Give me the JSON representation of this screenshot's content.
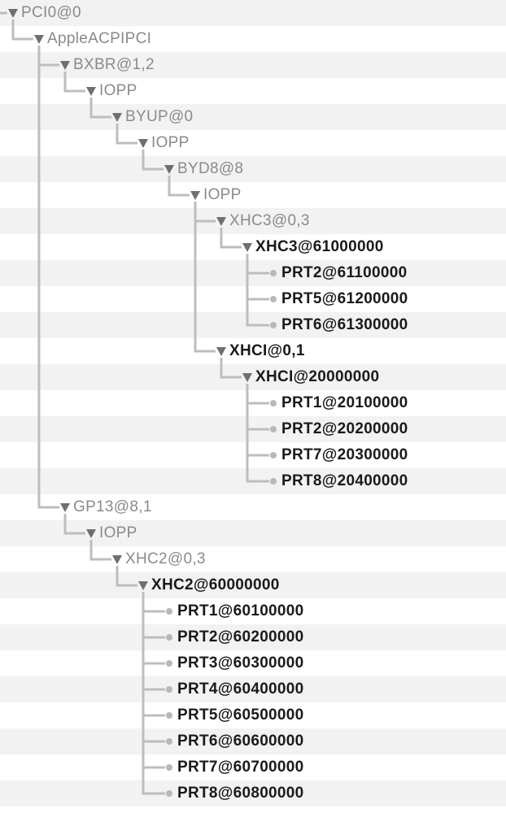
{
  "tree": {
    "nodes": [
      {
        "label": "PCI0@0",
        "depth": 0,
        "expanded": true,
        "bold": false
      },
      {
        "label": "AppleACPIPCI",
        "depth": 1,
        "expanded": true,
        "bold": false
      },
      {
        "label": "BXBR@1,2",
        "depth": 2,
        "expanded": true,
        "bold": false
      },
      {
        "label": "IOPP",
        "depth": 3,
        "expanded": true,
        "bold": false
      },
      {
        "label": "BYUP@0",
        "depth": 4,
        "expanded": true,
        "bold": false
      },
      {
        "label": "IOPP",
        "depth": 5,
        "expanded": true,
        "bold": false
      },
      {
        "label": "BYD8@8",
        "depth": 6,
        "expanded": true,
        "bold": false
      },
      {
        "label": "IOPP",
        "depth": 7,
        "expanded": true,
        "bold": false
      },
      {
        "label": "XHC3@0,3",
        "depth": 8,
        "expanded": true,
        "bold": false
      },
      {
        "label": "XHC3@61000000",
        "depth": 9,
        "expanded": true,
        "bold": true
      },
      {
        "label": "PRT2@61100000",
        "depth": 10,
        "expanded": false,
        "bold": true
      },
      {
        "label": "PRT5@61200000",
        "depth": 10,
        "expanded": false,
        "bold": true
      },
      {
        "label": "PRT6@61300000",
        "depth": 10,
        "expanded": false,
        "bold": true
      },
      {
        "label": "XHCI@0,1",
        "depth": 8,
        "expanded": true,
        "bold": true
      },
      {
        "label": "XHCI@20000000",
        "depth": 9,
        "expanded": true,
        "bold": true
      },
      {
        "label": "PRT1@20100000",
        "depth": 10,
        "expanded": false,
        "bold": true
      },
      {
        "label": "PRT2@20200000",
        "depth": 10,
        "expanded": false,
        "bold": true
      },
      {
        "label": "PRT7@20300000",
        "depth": 10,
        "expanded": false,
        "bold": true
      },
      {
        "label": "PRT8@20400000",
        "depth": 10,
        "expanded": false,
        "bold": true
      },
      {
        "label": "GP13@8,1",
        "depth": 2,
        "expanded": true,
        "bold": false
      },
      {
        "label": "IOPP",
        "depth": 3,
        "expanded": true,
        "bold": false
      },
      {
        "label": "XHC2@0,3",
        "depth": 4,
        "expanded": true,
        "bold": false
      },
      {
        "label": "XHC2@60000000",
        "depth": 5,
        "expanded": true,
        "bold": true
      },
      {
        "label": "PRT1@60100000",
        "depth": 6,
        "expanded": false,
        "bold": true
      },
      {
        "label": "PRT2@60200000",
        "depth": 6,
        "expanded": false,
        "bold": true
      },
      {
        "label": "PRT3@60300000",
        "depth": 6,
        "expanded": false,
        "bold": true
      },
      {
        "label": "PRT4@60400000",
        "depth": 6,
        "expanded": false,
        "bold": true
      },
      {
        "label": "PRT5@60500000",
        "depth": 6,
        "expanded": false,
        "bold": true
      },
      {
        "label": "PRT6@60600000",
        "depth": 6,
        "expanded": false,
        "bold": true
      },
      {
        "label": "PRT7@60700000",
        "depth": 6,
        "expanded": false,
        "bold": true
      },
      {
        "label": "PRT8@60800000",
        "depth": 6,
        "expanded": false,
        "bold": true
      }
    ]
  }
}
